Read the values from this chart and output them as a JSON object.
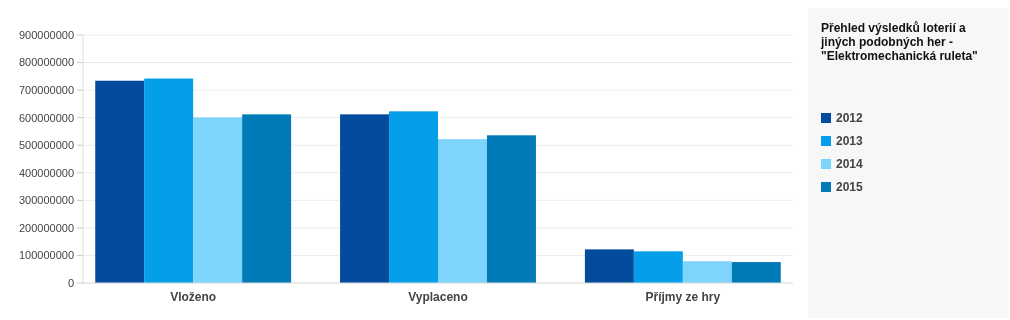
{
  "chart_data": {
    "type": "bar",
    "title": "Přehled výsledků loterií a jiných podobných her - \"Elektromechanická ruleta\"",
    "categories": [
      "Vloženo",
      "Vyplaceno",
      "Příjmy ze hry"
    ],
    "series": [
      {
        "name": "2012",
        "color": "#034b9c",
        "values": [
          734000000,
          612000000,
          122000000
        ]
      },
      {
        "name": "2013",
        "color": "#049fe8",
        "values": [
          742000000,
          623000000,
          115000000
        ]
      },
      {
        "name": "2014",
        "color": "#7fd4fc",
        "values": [
          601000000,
          522000000,
          79000000
        ]
      },
      {
        "name": "2015",
        "color": "#007bb8",
        "values": [
          612000000,
          536000000,
          76000000
        ]
      }
    ],
    "ylim": [
      0,
      900000000
    ],
    "yticks": [
      0,
      100000000,
      200000000,
      300000000,
      400000000,
      500000000,
      600000000,
      700000000,
      800000000,
      900000000
    ],
    "grid": "y",
    "legend": "right"
  }
}
